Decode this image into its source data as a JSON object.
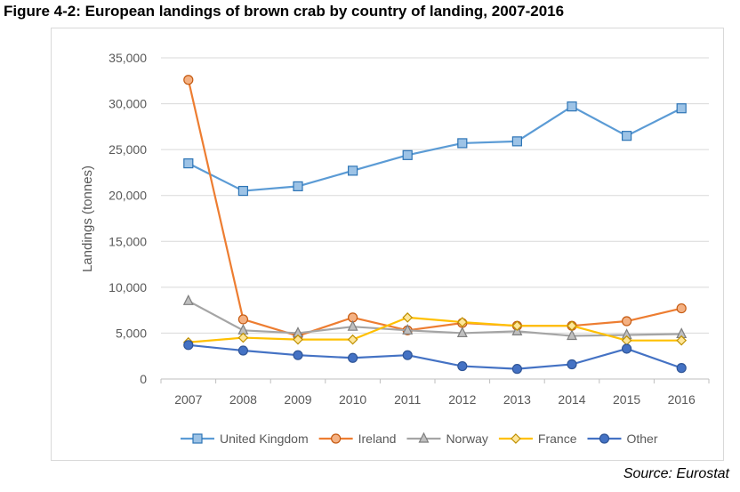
{
  "figure": {
    "title": "Figure 4-2: European landings of brown crab by country of landing, 2007-2016",
    "source": "Source: Eurostat"
  },
  "chart_data": {
    "type": "line",
    "title": "Figure 4-2: European landings of brown crab by country of landing, 2007-2016",
    "xlabel": "",
    "ylabel": "Landings (tonnes)",
    "x": [
      "2007",
      "2008",
      "2009",
      "2010",
      "2011",
      "2012",
      "2013",
      "2014",
      "2015",
      "2016"
    ],
    "ylim": [
      0,
      35000
    ],
    "yticks": [
      0,
      5000,
      10000,
      15000,
      20000,
      25000,
      30000,
      35000
    ],
    "ytick_labels": [
      "0",
      "5,000",
      "10,000",
      "15,000",
      "20,000",
      "25,000",
      "30,000",
      "35,000"
    ],
    "grid": "horizontal",
    "legend": "bottom",
    "series": [
      {
        "name": "United Kingdom",
        "color": "#5b9bd5",
        "fill": "#9dc3e6",
        "marker": "square",
        "values": [
          23500,
          20500,
          21000,
          22700,
          24400,
          25700,
          25900,
          29700,
          26500,
          29500
        ]
      },
      {
        "name": "Ireland",
        "color": "#ed7d31",
        "fill": "#f4b183",
        "marker": "circle",
        "values": [
          32600,
          6500,
          4700,
          6700,
          5300,
          6100,
          5800,
          5800,
          6300,
          7700
        ]
      },
      {
        "name": "Norway",
        "color": "#a5a5a5",
        "fill": "#bfbfbf",
        "marker": "triangle",
        "values": [
          8500,
          5300,
          5000,
          5700,
          5300,
          5000,
          5200,
          4700,
          4800,
          4900
        ]
      },
      {
        "name": "France",
        "color": "#ffc000",
        "fill": "#ffe699",
        "marker": "diamond",
        "values": [
          4000,
          4500,
          4300,
          4300,
          6700,
          6200,
          5800,
          5800,
          4200,
          4200
        ]
      },
      {
        "name": "Other",
        "color": "#4472c4",
        "fill": "#4472c4",
        "marker": "circle",
        "values": [
          3700,
          3100,
          2600,
          2300,
          2600,
          1400,
          1100,
          1600,
          3300,
          1200
        ]
      }
    ]
  }
}
